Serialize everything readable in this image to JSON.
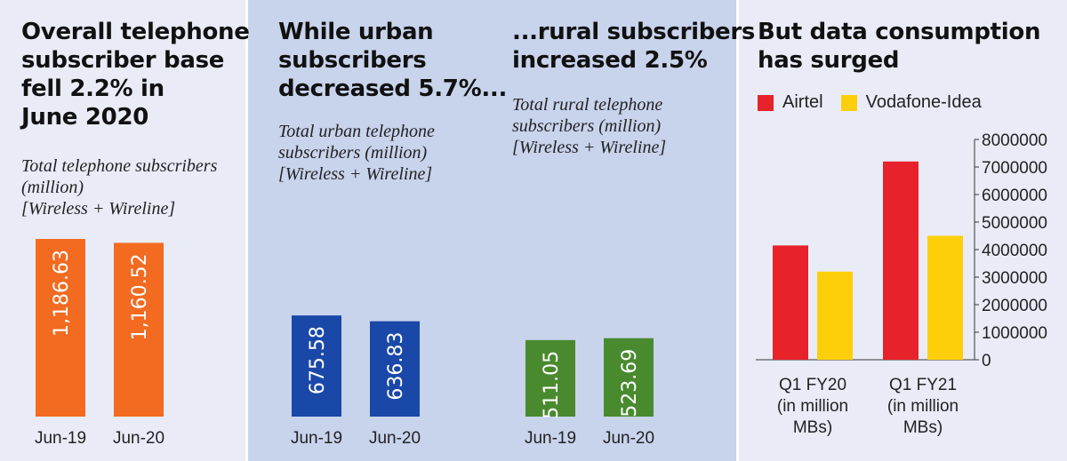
{
  "panel1": {
    "headline": [
      "Overall telephone",
      "subscriber base",
      "fell 2.2% in",
      "June 2020"
    ],
    "subtitle": [
      "Total telephone subscribers",
      "(million)",
      "[Wireless + Wireline]"
    ]
  },
  "panel2": {
    "headline": [
      "While urban",
      "subscribers",
      "decreased 5.7%..."
    ],
    "subtitle": [
      "Total urban telephone",
      "subscribers (million)",
      "[Wireless + Wireline]"
    ]
  },
  "panel3": {
    "headline": [
      "...rural subscribers",
      "increased 2.5%"
    ],
    "subtitle": [
      "Total rural telephone",
      "subscribers (million)",
      "[Wireless + Wireline]"
    ]
  },
  "panel4": {
    "headline": [
      "But  data consumption",
      "has surged"
    ],
    "legend": [
      "Airtel",
      "Vodafone-Idea"
    ]
  },
  "colors": {
    "orange": "#f26b21",
    "blue": "#1a48a8",
    "green": "#4a8a2f",
    "red": "#e8222a",
    "yellow": "#fccf0a"
  },
  "chart_data": [
    {
      "type": "bar",
      "categories": [
        "Jun-19",
        "Jun-20"
      ],
      "values": [
        1186.63,
        1160.52
      ],
      "value_labels": [
        "1,186.63",
        "1,160.52"
      ],
      "color": "#f26b21"
    },
    {
      "type": "bar",
      "categories": [
        "Jun-19",
        "Jun-20"
      ],
      "values": [
        675.58,
        636.83
      ],
      "value_labels": [
        "675.58",
        "636.83"
      ],
      "color": "#1a48a8"
    },
    {
      "type": "bar",
      "categories": [
        "Jun-19",
        "Jun-20"
      ],
      "values": [
        511.05,
        523.69
      ],
      "value_labels": [
        "511.05",
        "523.69"
      ],
      "color": "#4a8a2f"
    },
    {
      "type": "bar",
      "categories": [
        [
          "Q1 FY20",
          "(in million",
          "MBs)"
        ],
        [
          "Q1 FY21",
          "(in million",
          "MBs)"
        ]
      ],
      "series": [
        {
          "name": "Airtel",
          "values": [
            4150000,
            7200000
          ],
          "color": "#e8222a"
        },
        {
          "name": "Vodafone-Idea",
          "values": [
            3200000,
            4500000
          ],
          "color": "#fccf0a"
        }
      ],
      "ylim": [
        0,
        8000000
      ],
      "yticks": [
        0,
        1000000,
        2000000,
        3000000,
        4000000,
        5000000,
        6000000,
        7000000,
        8000000
      ],
      "ytick_labels": [
        "0",
        "1000000",
        "2000000",
        "3000000",
        "4000000",
        "5000000",
        "6000000",
        "7000000",
        "8000000"
      ],
      "grid": false
    }
  ]
}
